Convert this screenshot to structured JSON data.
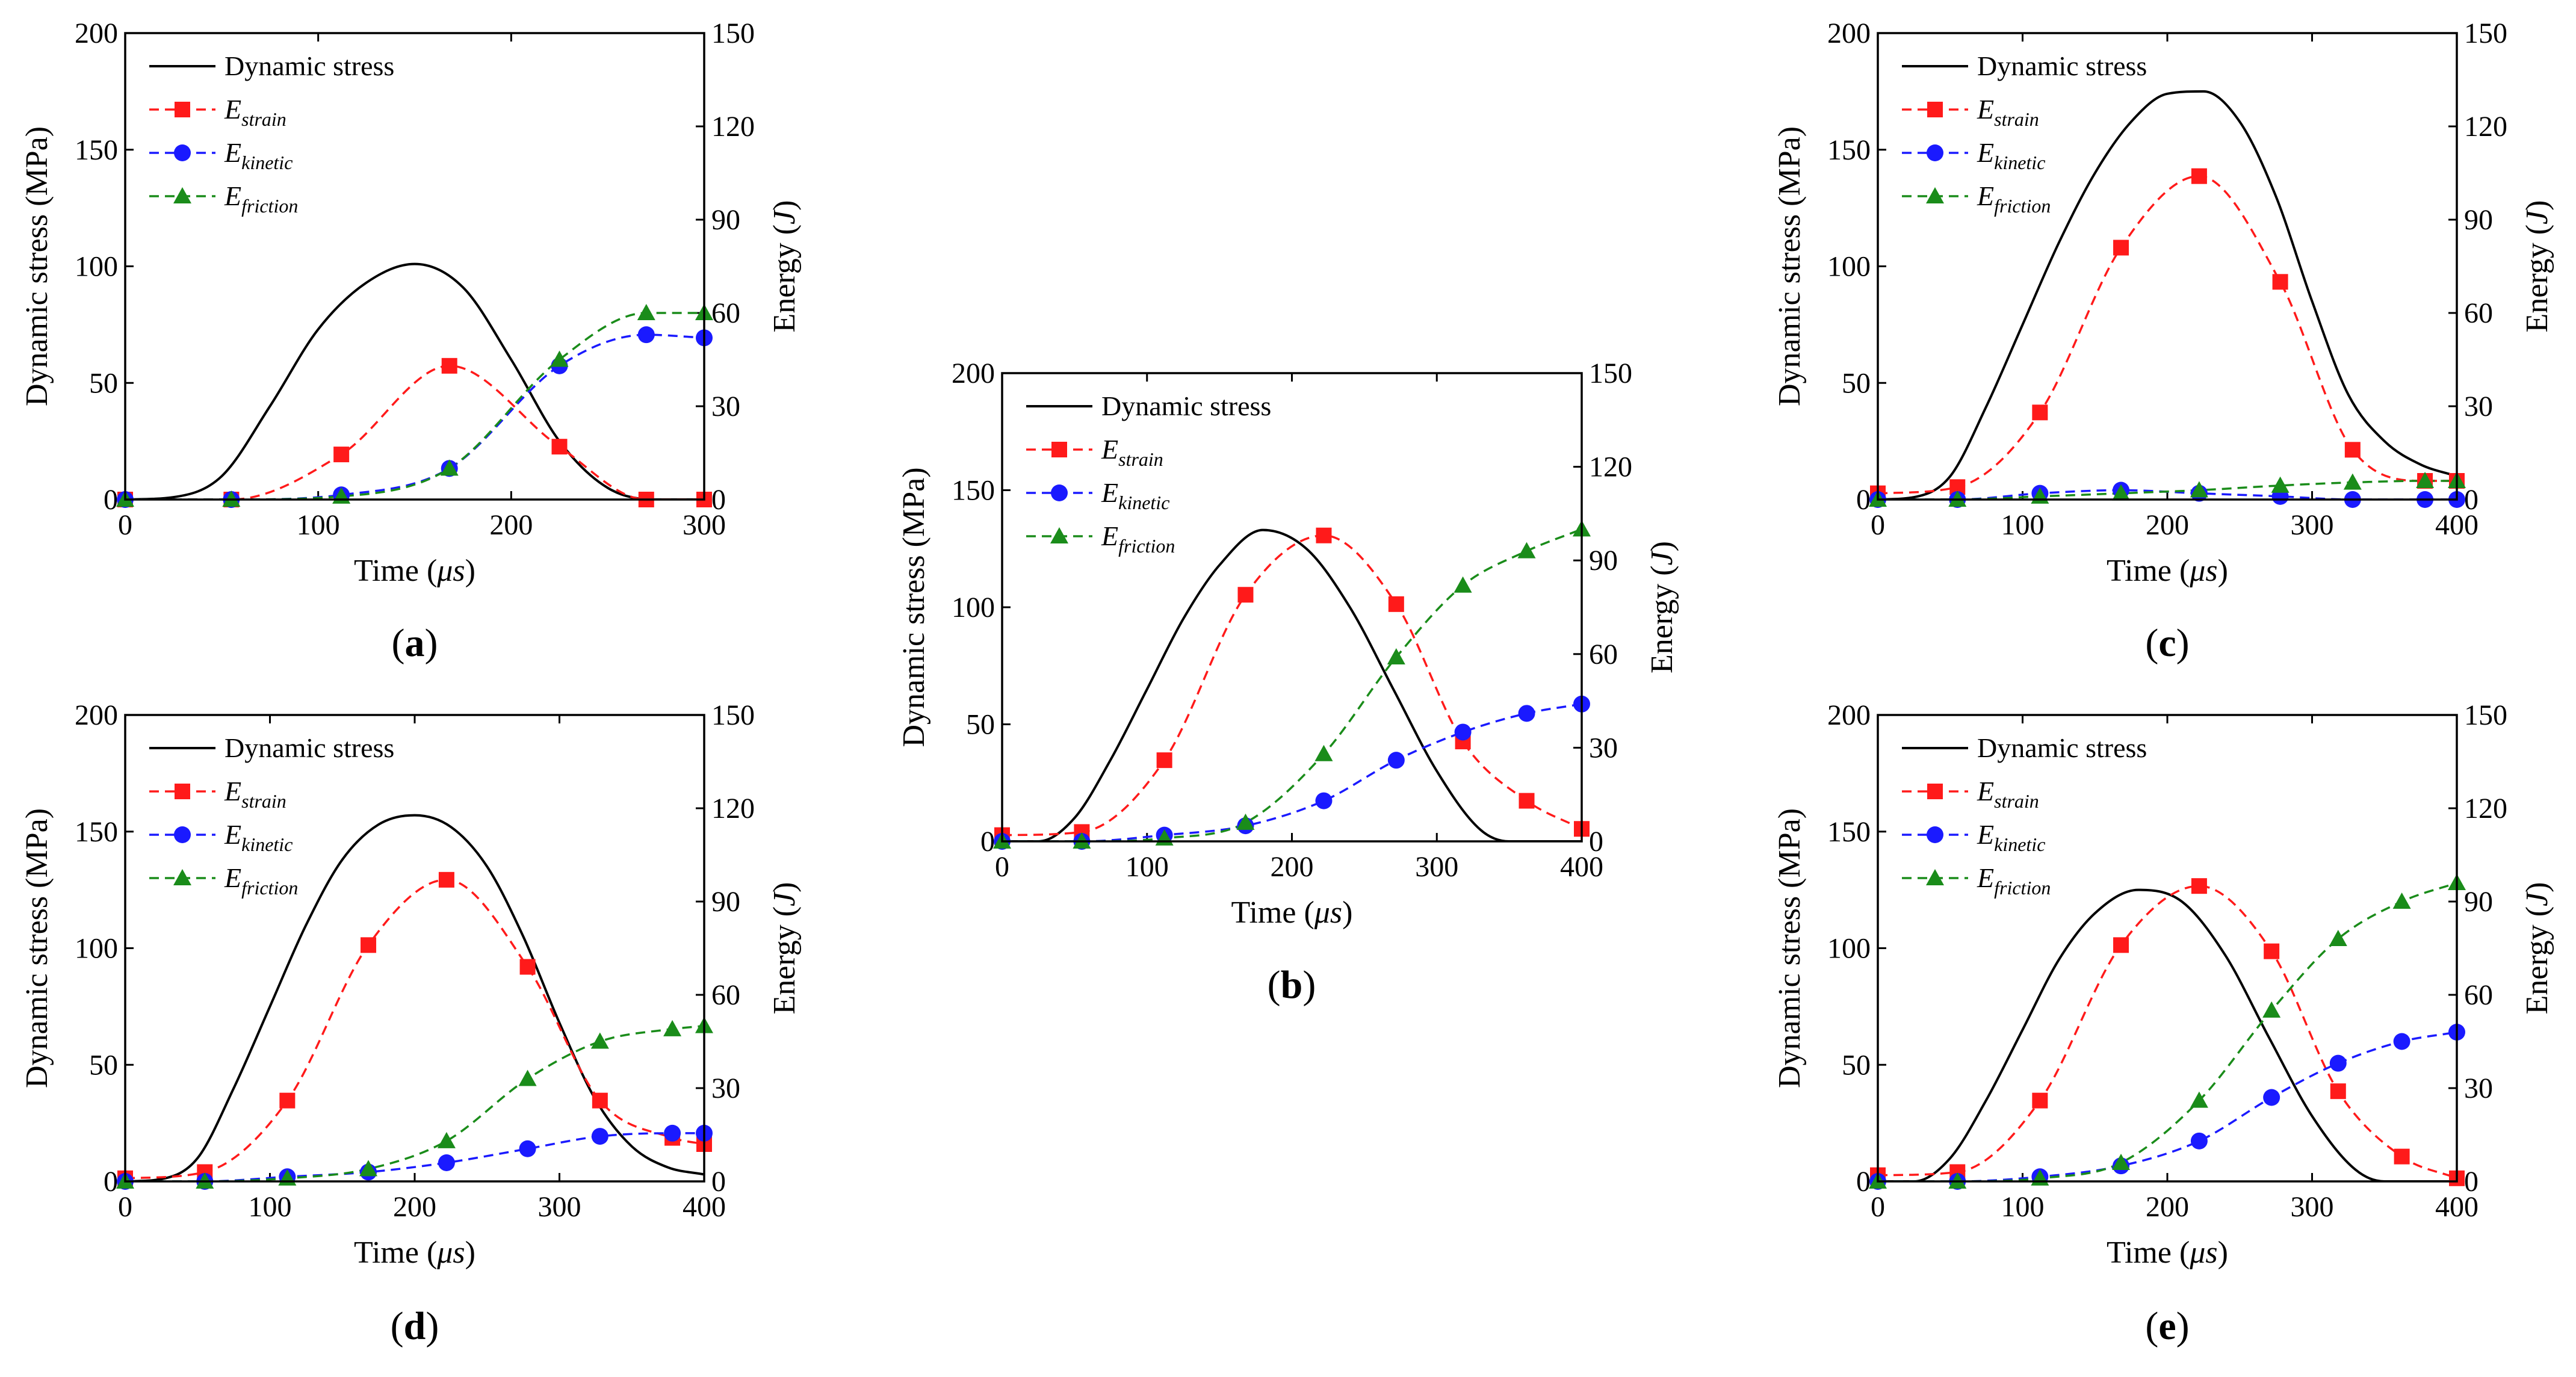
{
  "colors": {
    "stress": "#000000",
    "strain": "#ff1a1a",
    "kinetic": "#1a1aff",
    "friction": "#1a8c1a"
  },
  "legend": {
    "stress": "Dynamic stress",
    "strain_base": "E",
    "strain_sub": "strain",
    "kinetic_base": "E",
    "kinetic_sub": "kinetic",
    "friction_base": "E",
    "friction_sub": "friction"
  },
  "axis_labels": {
    "xlabel_pre": "Time (",
    "xlabel_unit": "μs",
    "xlabel_post": ")",
    "ylabel_left": "Dynamic stress (MPa)",
    "ylabel_right_pre": "Energy (",
    "ylabel_right_unit": "J",
    "ylabel_right_post": ")"
  },
  "chart_data": [
    {
      "type": "line",
      "panel": "(a)",
      "panel_letter": "a",
      "xlim": [
        0,
        300
      ],
      "xticks": [
        0,
        100,
        200,
        300
      ],
      "ylim_left": [
        0,
        200
      ],
      "yticks_left": [
        0,
        50,
        100,
        150,
        200
      ],
      "ylim_right": [
        0,
        150
      ],
      "yticks_right": [
        0,
        30,
        60,
        90,
        120,
        150
      ],
      "stress": {
        "x": [
          0,
          25,
          50,
          75,
          100,
          125,
          150,
          175,
          200,
          225,
          250,
          275,
          300
        ],
        "y": [
          0,
          1,
          10,
          40,
          73,
          93,
          101,
          91,
          60,
          25,
          5,
          0,
          0
        ]
      },
      "strain": {
        "x": [
          0,
          55,
          112,
          168,
          225,
          270,
          300
        ],
        "y": [
          0,
          0,
          14.5,
          43,
          17,
          0,
          0
        ]
      },
      "kinetic": {
        "x": [
          0,
          55,
          112,
          168,
          225,
          270,
          300
        ],
        "y": [
          0,
          0,
          1.5,
          10,
          43,
          53,
          52
        ]
      },
      "friction": {
        "x": [
          0,
          55,
          112,
          168,
          225,
          270,
          300
        ],
        "y": [
          0,
          0,
          1,
          10,
          45,
          60,
          60
        ]
      }
    },
    {
      "type": "line",
      "panel": "(b)",
      "panel_letter": "b",
      "xlim": [
        0,
        400
      ],
      "xticks": [
        0,
        100,
        200,
        300,
        400
      ],
      "ylim_left": [
        0,
        200
      ],
      "yticks_left": [
        0,
        50,
        100,
        150,
        200
      ],
      "ylim_right": [
        0,
        150
      ],
      "yticks_right": [
        0,
        30,
        60,
        90,
        120,
        150
      ],
      "stress": {
        "x": [
          0,
          25,
          50,
          75,
          100,
          125,
          150,
          180,
          210,
          240,
          270,
          300,
          330,
          350,
          400
        ],
        "y": [
          0,
          0,
          10,
          35,
          65,
          95,
          118,
          133,
          125,
          100,
          65,
          30,
          5,
          0,
          0
        ]
      },
      "strain": {
        "x": [
          0,
          55,
          112,
          168,
          222,
          272,
          318,
          362,
          400
        ],
        "y": [
          2,
          3,
          26,
          79,
          98,
          76,
          32,
          13,
          4
        ]
      },
      "kinetic": {
        "x": [
          0,
          55,
          112,
          168,
          222,
          272,
          318,
          362,
          400
        ],
        "y": [
          0,
          0,
          2,
          5,
          13,
          26,
          35,
          41,
          44
        ]
      },
      "friction": {
        "x": [
          0,
          55,
          112,
          168,
          222,
          272,
          318,
          362,
          400
        ],
        "y": [
          0,
          0,
          1,
          6,
          28,
          59,
          82,
          93,
          100
        ]
      }
    },
    {
      "type": "line",
      "panel": "(c)",
      "panel_letter": "c",
      "xlim": [
        0,
        400
      ],
      "xticks": [
        0,
        100,
        200,
        300,
        400
      ],
      "ylim_left": [
        0,
        200
      ],
      "yticks_left": [
        0,
        50,
        100,
        150,
        200
      ],
      "ylim_right": [
        0,
        150
      ],
      "yticks_right": [
        0,
        30,
        60,
        90,
        120,
        150
      ],
      "stress": {
        "x": [
          0,
          25,
          50,
          75,
          100,
          125,
          150,
          175,
          200,
          225,
          250,
          275,
          300,
          325,
          350,
          375,
          400
        ],
        "y": [
          0,
          1,
          10,
          40,
          75,
          110,
          140,
          162,
          174,
          175,
          162,
          130,
          85,
          45,
          25,
          15,
          10
        ]
      },
      "strain": {
        "x": [
          0,
          55,
          112,
          168,
          222,
          278,
          328,
          378,
          400
        ],
        "y": [
          2,
          4,
          28,
          81,
          104,
          70,
          16,
          6,
          6
        ]
      },
      "kinetic": {
        "x": [
          0,
          55,
          112,
          168,
          222,
          278,
          328,
          378,
          400
        ],
        "y": [
          0,
          0,
          2,
          3,
          2,
          1,
          0,
          0,
          0
        ]
      },
      "friction": {
        "x": [
          0,
          55,
          112,
          168,
          222,
          278,
          328,
          378,
          400
        ],
        "y": [
          0,
          0,
          1,
          2,
          3,
          4.5,
          5.5,
          6,
          6
        ]
      }
    },
    {
      "type": "line",
      "panel": "(d)",
      "panel_letter": "d",
      "xlim": [
        0,
        400
      ],
      "xticks": [
        0,
        100,
        200,
        300,
        400
      ],
      "ylim_left": [
        0,
        200
      ],
      "yticks_left": [
        0,
        50,
        100,
        150,
        200
      ],
      "ylim_right": [
        0,
        150
      ],
      "yticks_right": [
        0,
        30,
        60,
        90,
        120,
        150
      ],
      "stress": {
        "x": [
          0,
          25,
          50,
          75,
          100,
          125,
          150,
          175,
          200,
          225,
          250,
          275,
          300,
          325,
          350,
          375,
          400
        ],
        "y": [
          0,
          1,
          10,
          40,
          75,
          110,
          138,
          153,
          157,
          152,
          135,
          105,
          68,
          35,
          15,
          6,
          3
        ]
      },
      "strain": {
        "x": [
          0,
          55,
          112,
          168,
          222,
          278,
          328,
          378,
          400
        ],
        "y": [
          1,
          3,
          26,
          76,
          97,
          69,
          26,
          14,
          12
        ]
      },
      "kinetic": {
        "x": [
          0,
          55,
          112,
          168,
          222,
          278,
          328,
          378,
          400
        ],
        "y": [
          0,
          0,
          1.5,
          3,
          6,
          10.5,
          14.5,
          15.5,
          15.5
        ]
      },
      "friction": {
        "x": [
          0,
          55,
          112,
          168,
          222,
          278,
          328,
          378,
          400
        ],
        "y": [
          0,
          0,
          1,
          4,
          13,
          33,
          45,
          49,
          50
        ]
      }
    },
    {
      "type": "line",
      "panel": "(e)",
      "panel_letter": "e",
      "xlim": [
        0,
        400
      ],
      "xticks": [
        0,
        100,
        200,
        300,
        400
      ],
      "ylim_left": [
        0,
        200
      ],
      "yticks_left": [
        0,
        50,
        100,
        150,
        200
      ],
      "ylim_right": [
        0,
        150
      ],
      "yticks_right": [
        0,
        30,
        60,
        90,
        120,
        150
      ],
      "stress": {
        "x": [
          0,
          25,
          50,
          75,
          100,
          125,
          150,
          180,
          210,
          240,
          270,
          300,
          330,
          350,
          400
        ],
        "y": [
          0,
          0,
          10,
          35,
          65,
          95,
          115,
          125,
          120,
          97,
          62,
          28,
          5,
          0,
          0
        ]
      },
      "strain": {
        "x": [
          0,
          55,
          112,
          168,
          222,
          272,
          318,
          362,
          400
        ],
        "y": [
          2,
          3,
          26,
          76,
          95,
          74,
          29,
          8,
          1
        ]
      },
      "kinetic": {
        "x": [
          0,
          55,
          112,
          168,
          222,
          272,
          318,
          362,
          400
        ],
        "y": [
          0,
          0,
          1.5,
          5,
          13,
          27,
          38,
          45,
          48
        ]
      },
      "friction": {
        "x": [
          0,
          55,
          112,
          168,
          222,
          272,
          318,
          362,
          400
        ],
        "y": [
          0,
          0,
          1,
          6,
          26,
          55,
          78,
          90,
          96
        ]
      }
    }
  ]
}
